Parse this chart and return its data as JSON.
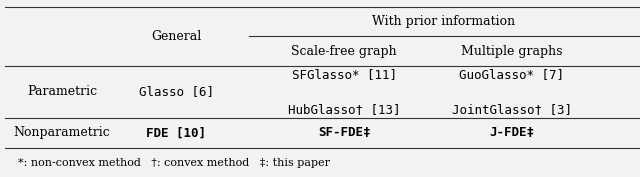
{
  "fig_width": 6.4,
  "fig_height": 1.77,
  "dpi": 100,
  "background_color": "#f2f2f2",
  "header_top": "With prior information",
  "header_general": "General",
  "header_scale_free": "Scale-free graph",
  "header_multiple": "Multiple graphs",
  "row1_label": "Parametric",
  "row1_general": "Glasso [6]",
  "row1_scale_line1": "SFGlasso* [11]",
  "row1_scale_line2": "HubGlasso† [13]",
  "row1_multi_line1": "GuoGlasso* [7]",
  "row1_multi_line2": "JointGlasso† [3]",
  "row2_label": "Nonparametric",
  "row2_general": "FDE [10]",
  "row2_scale": "SF-FDE‡",
  "row2_multi": "J-FDE‡",
  "footnote": "*: non-convex method   †: convex method   ‡: this paper",
  "line_color": "#333333",
  "font_size_main": 9,
  "font_size_header": 9,
  "font_size_footnote": 8
}
